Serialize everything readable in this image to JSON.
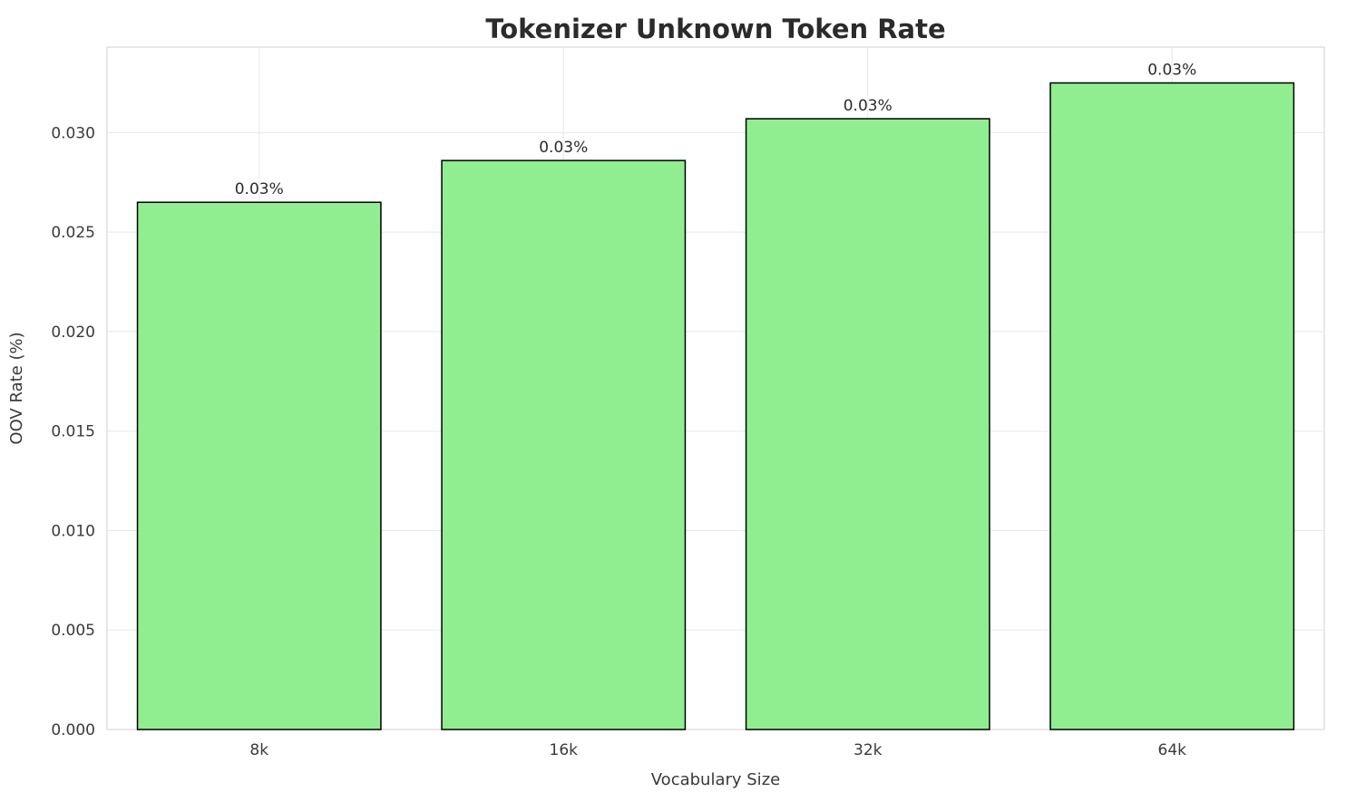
{
  "chart_data": {
    "type": "bar",
    "title": "Tokenizer Unknown Token Rate",
    "xlabel": "Vocabulary Size",
    "ylabel": "OOV Rate (%)",
    "categories": [
      "8k",
      "16k",
      "32k",
      "64k"
    ],
    "values": [
      0.0265,
      0.0286,
      0.0307,
      0.0325
    ],
    "bar_labels": [
      "0.03%",
      "0.03%",
      "0.03%",
      "0.03%"
    ],
    "ylim": [
      0,
      0.0343
    ],
    "yticks": [
      0.0,
      0.005,
      0.01,
      0.015,
      0.02,
      0.025,
      0.03
    ],
    "ytick_labels": [
      "0.000",
      "0.005",
      "0.010",
      "0.015",
      "0.020",
      "0.025",
      "0.030"
    ],
    "bar_color": "#90EE90",
    "bar_edge_color": "#000000",
    "grid_color": "#e8e8e8",
    "plot_border_color": "#d8d8d8",
    "grid": true,
    "legend": "none"
  }
}
